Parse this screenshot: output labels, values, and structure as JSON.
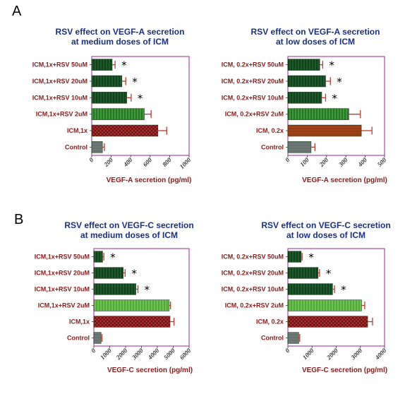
{
  "panel_letters": [
    "A",
    "B"
  ],
  "colors": {
    "title": "#1a2f8a",
    "category_label": "#8b1a1a",
    "frame": "#a84aa8",
    "error_bar": "#c0392b",
    "dark_green": "#1e5c2a",
    "medium_green": "#3f9a3a",
    "light_green": "#66c04c",
    "red_crosshatch": "#9a1e1e",
    "brown": "#a0431a",
    "control_gray": "#6d7a76"
  },
  "chart_data": [
    {
      "type": "bar",
      "orientation": "horizontal",
      "title": [
        "RSV effect on VEGF-A secretion",
        "at medium doses of ICM"
      ],
      "xlabel": "VEGF-A secretion (pg/ml)",
      "ylabel": "",
      "xlim": [
        0,
        1000
      ],
      "ticks": [
        0,
        200,
        400,
        600,
        800,
        1000
      ],
      "categories": [
        "ICM,1x+RSV 50uM",
        "ICM,1x+RSV 20uM",
        "ICM,1x+RSV 10uM",
        "ICM,1x+RSV 2uM",
        "ICM,1x",
        "Control"
      ],
      "values": [
        210,
        310,
        360,
        540,
        680,
        110
      ],
      "errors": [
        30,
        40,
        45,
        70,
        90,
        20
      ],
      "significance": [
        "*",
        "*",
        "*",
        "",
        "",
        ""
      ],
      "fills": [
        "dark_green",
        "dark_green",
        "dark_green",
        "medium_green",
        "red_crosshatch",
        "control_gray"
      ],
      "grid": false
    },
    {
      "type": "bar",
      "orientation": "horizontal",
      "title": [
        "RSV effect on VEGF-A secretion",
        "at low doses of ICM"
      ],
      "xlabel": "VEGF-A secretion (pg/ml)",
      "ylabel": "",
      "xlim": [
        0,
        500
      ],
      "ticks": [
        0,
        100,
        200,
        300,
        400,
        500
      ],
      "categories": [
        "ICM, 0.2x+RSV 50uM",
        "ICM, 0.2x+RSV 20uM",
        "ICM, 0.2x+RSV 10uM",
        "ICM, 0.2x+RSV 2uM",
        "ICM, 0.2x",
        "Control"
      ],
      "values": [
        165,
        195,
        175,
        315,
        380,
        120
      ],
      "errors": [
        15,
        25,
        20,
        60,
        55,
        20
      ],
      "significance": [
        "*",
        "*",
        "*",
        "",
        "",
        ""
      ],
      "fills": [
        "dark_green",
        "dark_green",
        "dark_green",
        "medium_green",
        "brown",
        "control_gray"
      ],
      "grid": false
    },
    {
      "type": "bar",
      "orientation": "horizontal",
      "title": [
        "RSV effect on VEGF-C secretion",
        "at medium doses of ICM"
      ],
      "xlabel": "VEGF-C secretion (pg/ml)",
      "ylabel": "",
      "xlim": [
        0,
        6000
      ],
      "ticks": [
        0,
        1000,
        2000,
        3000,
        4000,
        5000,
        6000
      ],
      "categories": [
        "ICM,1x+RSV 50uM",
        "ICM,1x+RSV 20uM",
        "ICM,1x+RSV 10uM",
        "ICM,1x+RSV 2uM",
        "ICM,1x",
        "Control"
      ],
      "values": [
        550,
        1850,
        2650,
        4750,
        4800,
        450
      ],
      "errors": [
        80,
        120,
        130,
        80,
        250,
        60
      ],
      "significance": [
        "*",
        "*",
        "*",
        "",
        "",
        ""
      ],
      "fills": [
        "dark_green",
        "dark_green",
        "dark_green",
        "light_green",
        "red_crosshatch",
        "control_gray"
      ],
      "grid": false
    },
    {
      "type": "bar",
      "orientation": "horizontal",
      "title": [
        "RSV effect on VEGF-C secretion",
        "at low doses of ICM"
      ],
      "xlabel": "VEGF-C secretion (pg/ml)",
      "ylabel": "",
      "xlim": [
        0,
        4000
      ],
      "ticks": [
        0,
        1000,
        2000,
        3000,
        4000
      ],
      "categories": [
        "ICM, 0.2x+RSV 50uM",
        "ICM, 0.2x+RSV 20uM",
        "ICM, 0.2x+RSV 10uM",
        "ICM, 0.2x+RSV 2uM",
        "ICM, 0.2x",
        "Control"
      ],
      "values": [
        550,
        1250,
        1850,
        3050,
        3300,
        450
      ],
      "errors": [
        40,
        60,
        80,
        130,
        200,
        40
      ],
      "significance": [
        "*",
        "*",
        "*",
        "",
        "",
        ""
      ],
      "fills": [
        "dark_green",
        "dark_green",
        "dark_green",
        "light_green",
        "red_crosshatch",
        "control_gray"
      ],
      "grid": false
    }
  ]
}
